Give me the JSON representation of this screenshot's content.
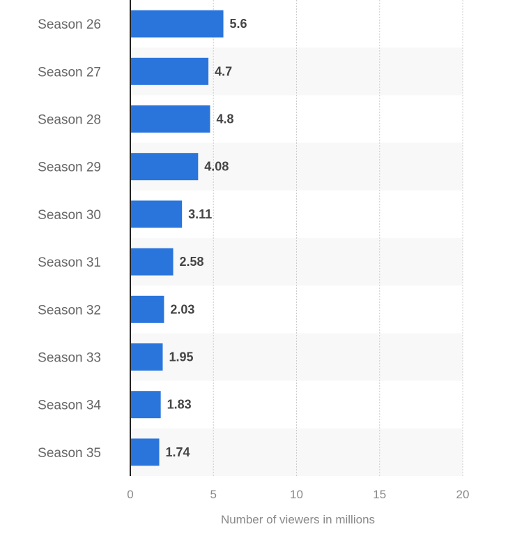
{
  "chart_data": {
    "type": "bar",
    "orientation": "horizontal",
    "categories": [
      "Season 26",
      "Season 27",
      "Season 28",
      "Season 29",
      "Season 30",
      "Season 31",
      "Season 32",
      "Season 33",
      "Season 34",
      "Season 35"
    ],
    "values": [
      5.6,
      4.7,
      4.8,
      4.08,
      3.11,
      2.58,
      2.03,
      1.95,
      1.83,
      1.74
    ],
    "value_labels": [
      "5.6",
      "4.7",
      "4.8",
      "4.08",
      "3.11",
      "2.58",
      "2.03",
      "1.95",
      "1.83",
      "1.74"
    ],
    "xlabel": "Number of viewers in millions",
    "ylabel": "",
    "xlim": [
      0,
      20
    ],
    "xticks": [
      "0",
      "5",
      "10",
      "15",
      "20"
    ],
    "grid": true,
    "bar_color": "#2a75dc",
    "band_color": "#f8f8f8"
  }
}
